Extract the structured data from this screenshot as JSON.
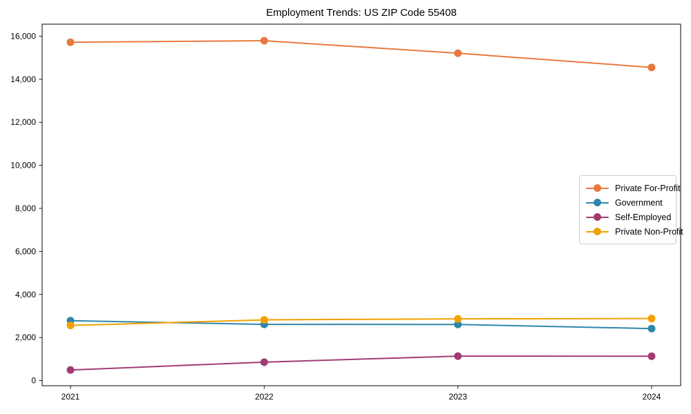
{
  "chart_data": {
    "type": "line",
    "title": "Employment Trends: US ZIP Code 55408",
    "x": [
      "2021",
      "2022",
      "2023",
      "2024"
    ],
    "series": [
      {
        "name": "Private For-Profit",
        "color": "#E8793E",
        "marker": "circle",
        "values": [
          15720,
          15790,
          15210,
          14550
        ]
      },
      {
        "name": "Government",
        "color": "#2E86AB",
        "marker": "circle",
        "values": [
          2780,
          2610,
          2605,
          2415
        ]
      },
      {
        "name": "Self-Employed",
        "color": "#A23B72",
        "marker": "circle",
        "values": [
          490,
          855,
          1135,
          1130
        ]
      },
      {
        "name": "Private Non-Profit",
        "color": "#F2A104",
        "marker": "circle",
        "values": [
          2560,
          2820,
          2865,
          2880
        ]
      }
    ],
    "xlabel": "",
    "ylabel": "",
    "ylim": [
      -240,
      16560
    ],
    "yticks": [
      0,
      2000,
      4000,
      6000,
      8000,
      10000,
      12000,
      14000,
      16000
    ],
    "ytick_labels": [
      "0",
      "2,000",
      "4,000",
      "6,000",
      "8,000",
      "10,000",
      "12,000",
      "14,000",
      "16,000"
    ],
    "grid": false,
    "legend_position": "center-right",
    "axis_color": "#000000",
    "background": "#ffffff"
  }
}
